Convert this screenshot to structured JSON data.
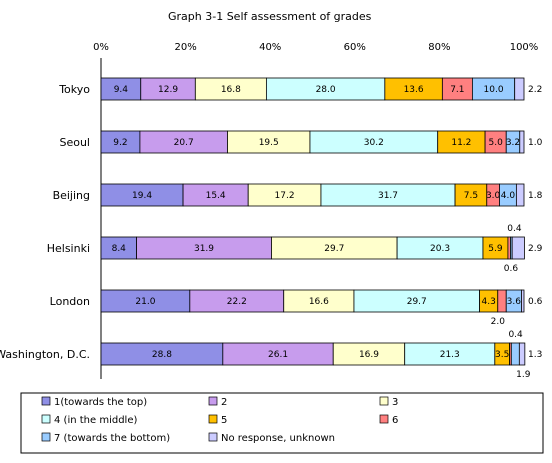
{
  "chart_data": {
    "type": "bar",
    "orientation": "horizontal",
    "stacked": true,
    "percent": true,
    "title": "Graph 3-1  Self assessment of grades",
    "xlim": [
      0,
      100
    ],
    "xticks": [
      "0%",
      "20%",
      "40%",
      "60%",
      "80%",
      "100%"
    ],
    "grid": false,
    "legend_position": "bottom",
    "categories": [
      "Tokyo",
      "Seoul",
      "Beijing",
      "Helsinki",
      "London",
      "Washington, D.C."
    ],
    "series": [
      {
        "name": "1(towards the top)",
        "color": "#8f8fe6",
        "values": [
          9.4,
          9.2,
          19.4,
          8.4,
          21.0,
          28.8
        ]
      },
      {
        "name": "2",
        "color": "#c79ced",
        "values": [
          12.9,
          20.7,
          15.4,
          31.9,
          22.2,
          26.1
        ]
      },
      {
        "name": "3",
        "color": "#ffffcc",
        "values": [
          16.8,
          19.5,
          17.2,
          29.7,
          16.6,
          16.9
        ]
      },
      {
        "name": "4 (in the middle)",
        "color": "#ccffff",
        "values": [
          28.0,
          30.2,
          31.7,
          20.3,
          29.7,
          21.3
        ]
      },
      {
        "name": "5",
        "color": "#ffc000",
        "values": [
          13.6,
          11.2,
          7.5,
          5.9,
          4.3,
          3.5
        ]
      },
      {
        "name": "6",
        "color": "#ff8080",
        "values": [
          7.1,
          5.0,
          3.0,
          0.6,
          2.0,
          0.4
        ]
      },
      {
        "name": "7 (towards the bottom)",
        "color": "#99ccff",
        "values": [
          10.0,
          3.2,
          4.0,
          0.4,
          3.6,
          1.9
        ]
      },
      {
        "name": "No response, unknown",
        "color": "#ccccff",
        "values": [
          2.2,
          1.0,
          1.8,
          2.9,
          0.6,
          1.3
        ]
      }
    ],
    "labels": [
      [
        "9.4",
        "12.9",
        "16.8",
        "28.0",
        "13.6",
        "7.1",
        "10.0",
        "2.2"
      ],
      [
        "9.2",
        "20.7",
        "19.5",
        "30.2",
        "11.2",
        "5.0",
        "3.2",
        "1.0"
      ],
      [
        "19.4",
        "15.4",
        "17.2",
        "31.7",
        "7.5",
        "3.0",
        "4.0",
        "1.8"
      ],
      [
        "8.4",
        "31.9",
        "29.7",
        "20.3",
        "5.9",
        "0.6",
        "0.4",
        "2.9"
      ],
      [
        "21.0",
        "22.2",
        "16.6",
        "29.7",
        "4.3",
        "2.0",
        "3.6",
        "0.6"
      ],
      [
        "28.8",
        "26.1",
        "16.9",
        "21.3",
        "3.5",
        "0.4",
        "1.9",
        "1.3"
      ]
    ]
  }
}
